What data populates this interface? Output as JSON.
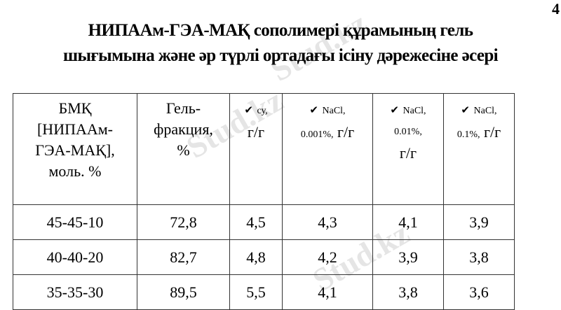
{
  "page_number": "4",
  "title_line1": "НИПААм-ГЭА-МАҚ сополимері құрамының гель",
  "title_line2": "шығымына және әр түрлі ортадағы ісіну дәрежесіне әсері",
  "watermark": "Stud.kz",
  "table": {
    "headers": {
      "c1": [
        "БМҚ",
        "[НИПААм-",
        "ГЭА-МАҚ],",
        "моль. %"
      ],
      "c2": [
        "Гель-",
        "фракция,",
        "%"
      ],
      "c3": {
        "check": "✔",
        "a": "су,",
        "b": "г/г"
      },
      "c4": {
        "check": "✔",
        "a": "NaCl,",
        "b": "0.001%,",
        "c": "г/г"
      },
      "c5": {
        "check": "✔",
        "a": "NaCl,",
        "b": "0.01%,",
        "c": "г/г"
      },
      "c6": {
        "check": "✔",
        "a": "NaCl,",
        "b": "0.1%,",
        "c": "г/г"
      }
    },
    "rows": [
      [
        "45-45-10",
        "72,8",
        "4,5",
        "4,3",
        "4,1",
        "3,9"
      ],
      [
        "40-40-20",
        "82,7",
        "4,8",
        "4,2",
        "3,9",
        "3,8"
      ],
      [
        "35-35-30",
        "89,5",
        "5,5",
        "4,1",
        "3,8",
        "3,6"
      ]
    ]
  }
}
